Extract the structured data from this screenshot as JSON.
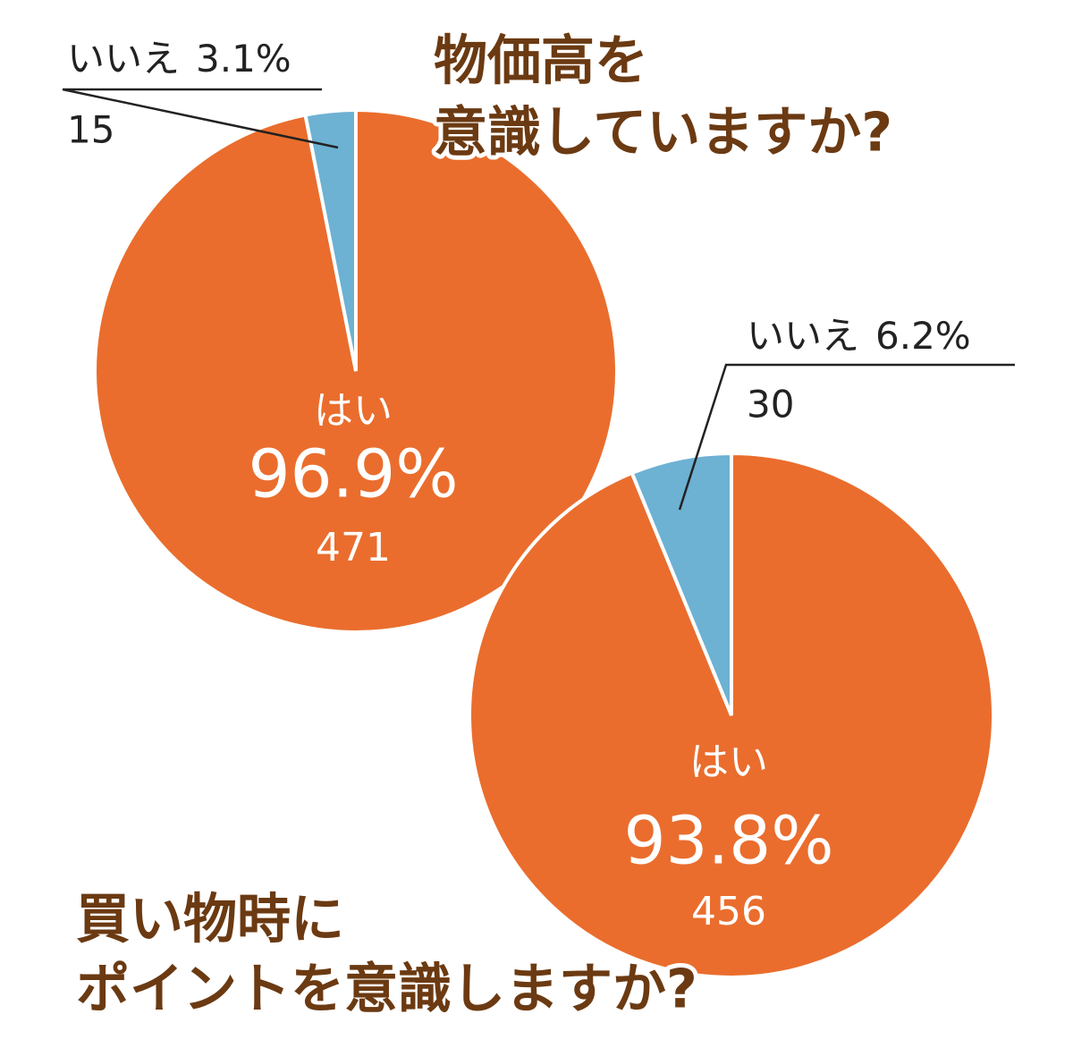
{
  "chart_data": [
    {
      "type": "pie",
      "title": [
        "物価高を",
        "意識していますか?"
      ],
      "categories": [
        "はい",
        "いいえ"
      ],
      "values": [
        96.9,
        3.1
      ],
      "value_labels": [
        "96.9%",
        "3.1%"
      ],
      "counts": [
        471,
        15
      ],
      "colors": [
        "#ea6d2d",
        "#6db1d3"
      ]
    },
    {
      "type": "pie",
      "title": [
        "買い物時に",
        "ポイントを意識しますか?"
      ],
      "categories": [
        "はい",
        "いいえ"
      ],
      "values": [
        93.8,
        6.2
      ],
      "value_labels": [
        "93.8%",
        "6.2%"
      ],
      "counts": [
        456,
        30
      ],
      "colors": [
        "#ea6d2d",
        "#6db1d3"
      ]
    }
  ]
}
